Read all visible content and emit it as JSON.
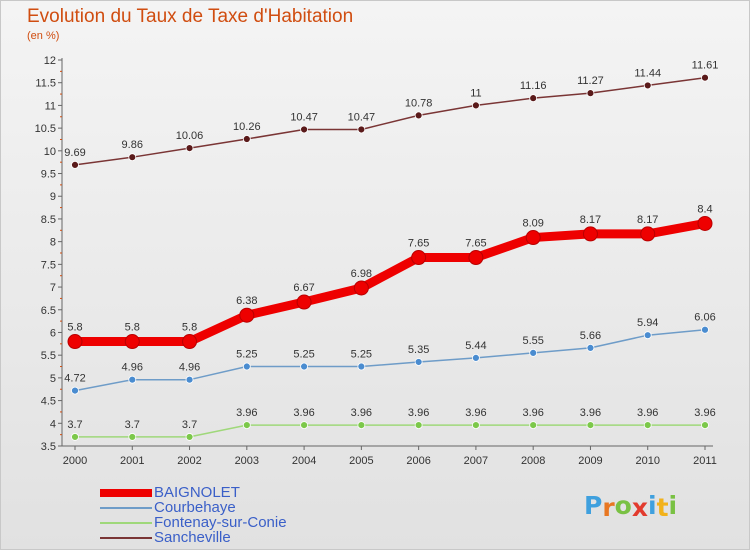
{
  "title": "Evolution du Taux de Taxe d'Habitation",
  "subtitle": "(en %)",
  "chart_data": {
    "type": "line",
    "x": [
      "2000",
      "2001",
      "2002",
      "2003",
      "2004",
      "2005",
      "2006",
      "2007",
      "2008",
      "2009",
      "2010",
      "2011"
    ],
    "yticks": [
      "3.5",
      "4",
      "4.5",
      "5",
      "5.5",
      "6",
      "6.5",
      "7",
      "7.5",
      "8",
      "8.5",
      "9",
      "9.5",
      "10",
      "10.5",
      "11",
      "11.5",
      "12"
    ],
    "ylim": [
      3.5,
      12
    ],
    "grid": false,
    "legend_position": "bottom-left",
    "series": [
      {
        "name": "BAIGNOLET",
        "color": "#ee0000",
        "width": 9,
        "marker": 7,
        "values": [
          5.8,
          5.8,
          5.8,
          6.38,
          6.67,
          6.98,
          7.65,
          7.65,
          8.09,
          8.17,
          8.17,
          8.4
        ],
        "labels": [
          "5.8",
          "5.8",
          "5.8",
          "6.38",
          "6.67",
          "6.98",
          "7.65",
          "7.65",
          "8.09",
          "8.17",
          "8.17",
          "8.4"
        ]
      },
      {
        "name": "Courbehaye",
        "color": "#6e9cc8",
        "width": 1.5,
        "marker": 3.5,
        "marker_color": "#4a8cd0",
        "values": [
          4.72,
          4.96,
          4.96,
          5.25,
          5.25,
          5.25,
          5.35,
          5.44,
          5.55,
          5.66,
          5.94,
          6.06
        ],
        "labels": [
          "4.72",
          "4.96",
          "4.96",
          "5.25",
          "5.25",
          "5.25",
          "5.35",
          "5.44",
          "5.55",
          "5.66",
          "5.94",
          "6.06"
        ]
      },
      {
        "name": "Fontenay-sur-Conie",
        "color": "#9fd87a",
        "width": 1.5,
        "marker": 3.5,
        "marker_color": "#7cc84a",
        "values": [
          3.7,
          3.7,
          3.7,
          3.96,
          3.96,
          3.96,
          3.96,
          3.96,
          3.96,
          3.96,
          3.96,
          3.96
        ],
        "labels": [
          "3.7",
          "3.7",
          "3.7",
          "3.96",
          "3.96",
          "3.96",
          "3.96",
          "3.96",
          "3.96",
          "3.96",
          "3.96",
          "3.96"
        ]
      },
      {
        "name": "Sancheville",
        "color": "#7a3535",
        "width": 1.5,
        "marker": 3.5,
        "marker_color": "#5a1a1a",
        "values": [
          9.69,
          9.86,
          10.06,
          10.26,
          10.47,
          10.47,
          10.78,
          11,
          11.16,
          11.27,
          11.44,
          11.61
        ],
        "labels": [
          "9.69",
          "9.86",
          "10.06",
          "10.26",
          "10.47",
          "10.47",
          "10.78",
          "11",
          "11.16",
          "11.27",
          "11.44",
          "11.61"
        ]
      }
    ]
  },
  "logo": {
    "text": "Proxiti",
    "colors": [
      "#3fa0de",
      "#e87722",
      "#79c143",
      "#e23b2e",
      "#3fa0de",
      "#f2b21b",
      "#79c143"
    ]
  }
}
